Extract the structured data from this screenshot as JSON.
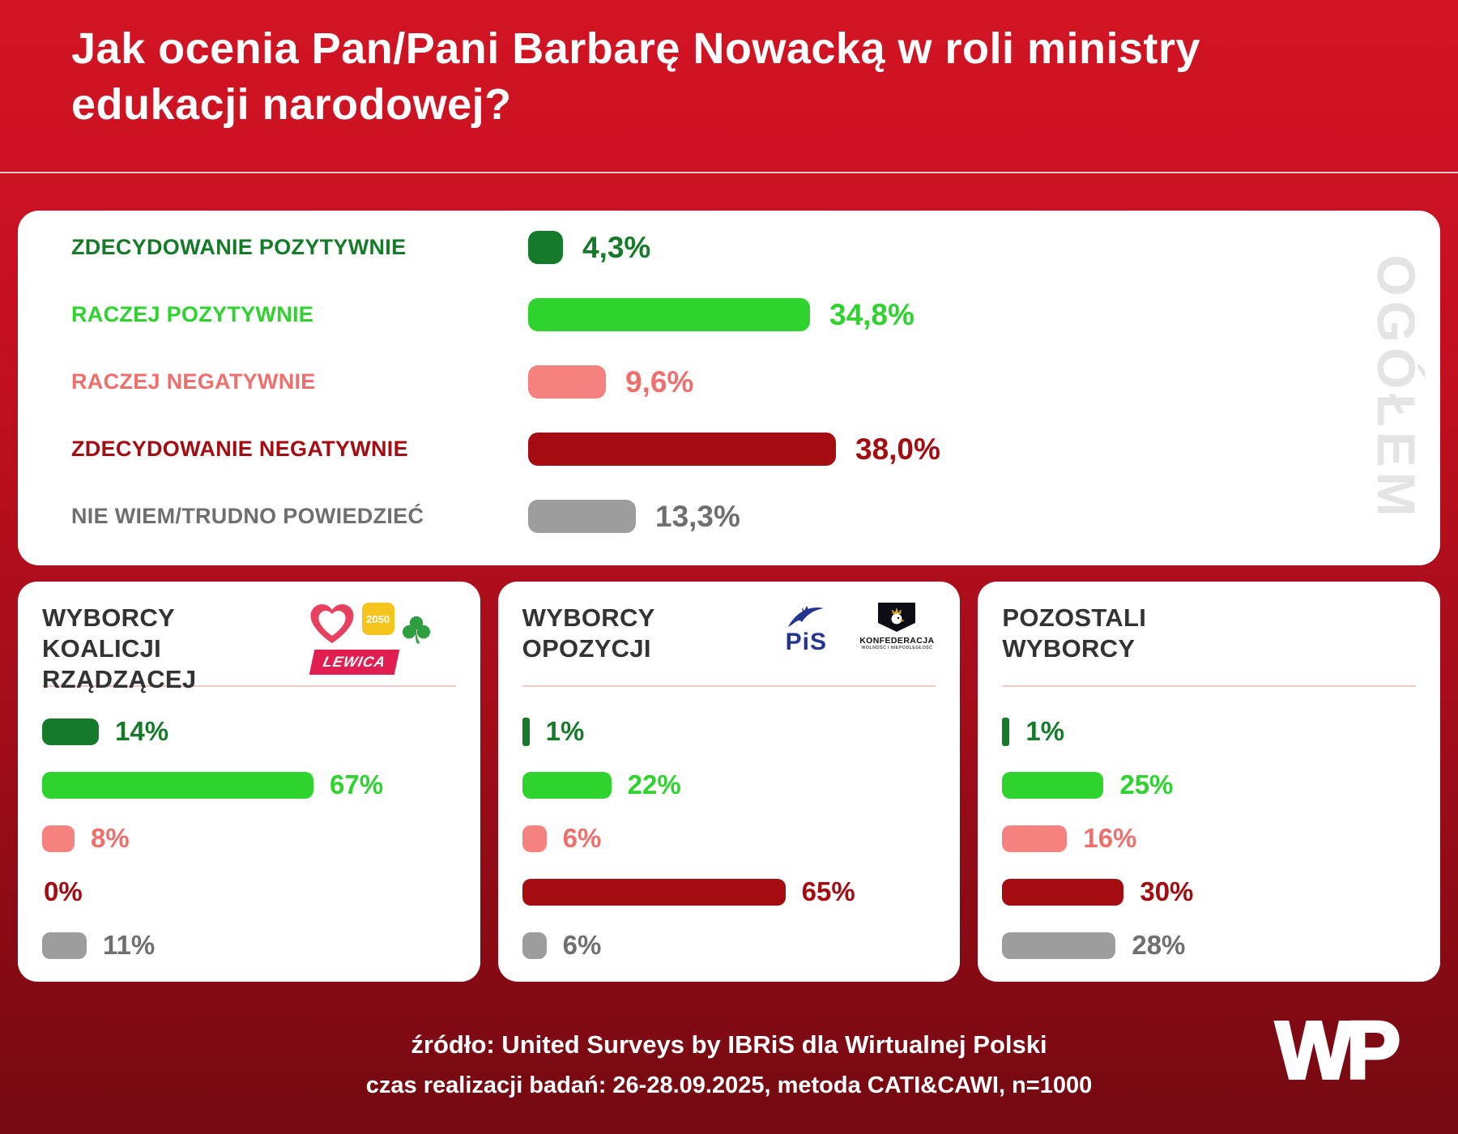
{
  "title_lines": [
    "Jak ocenia Pan/Pani Barbarę Nowacką w roli ministry",
    "edukacji narodowej?"
  ],
  "watermark": "OGÓŁEM",
  "series_colors": [
    "#157a29",
    "#2ed32e",
    "#f5827f",
    "#a50c12",
    "#9d9d9d"
  ],
  "label_colors": [
    "#157a29",
    "#2ed32e",
    "#ef6f6d",
    "#a50c12",
    "#6f6f6f"
  ],
  "chart_data": [
    {
      "type": "bar",
      "orientation": "horizontal",
      "title": "OGÓŁEM",
      "categories": [
        "ZDECYDOWANIE POZYTYWNIE",
        "RACZEJ POZYTYWNIE",
        "RACZEJ NEGATYWNIE",
        "ZDECYDOWANIE NEGATYWNIE",
        "NIE WIEM/TRUDNO POWIEDZIEĆ"
      ],
      "values": [
        4.3,
        34.8,
        9.6,
        38.0,
        13.3
      ],
      "value_labels": [
        "4,3%",
        "34,8%",
        "9,6%",
        "38,0%",
        "13,3%"
      ],
      "xlim": [
        0,
        40
      ],
      "grid": false,
      "legend_position": "none"
    },
    {
      "type": "bar",
      "orientation": "horizontal",
      "title": "WYBORCY KOALICJI RZĄDZĄCEJ",
      "categories": [
        "ZDECYDOWANIE POZYTYWNIE",
        "RACZEJ POZYTYWNIE",
        "RACZEJ NEGATYWNIE",
        "ZDECYDOWANIE NEGATYWNIE",
        "NIE WIEM/TRUDNO POWIEDZIEĆ"
      ],
      "values": [
        14,
        67,
        8,
        0,
        11
      ],
      "value_labels": [
        "14%",
        "67%",
        "8%",
        "0%",
        "11%"
      ],
      "xlim": [
        0,
        70
      ],
      "grid": false,
      "legend_position": "none"
    },
    {
      "type": "bar",
      "orientation": "horizontal",
      "title": "WYBORCY OPOZYCJI",
      "categories": [
        "ZDECYDOWANIE POZYTYWNIE",
        "RACZEJ POZYTYWNIE",
        "RACZEJ NEGATYWNIE",
        "ZDECYDOWANIE NEGATYWNIE",
        "NIE WIEM/TRUDNO POWIEDZIEĆ"
      ],
      "values": [
        1,
        22,
        6,
        65,
        6
      ],
      "value_labels": [
        "1%",
        "22%",
        "6%",
        "65%",
        "6%"
      ],
      "xlim": [
        0,
        70
      ],
      "grid": false,
      "legend_position": "none"
    },
    {
      "type": "bar",
      "orientation": "horizontal",
      "title": "POZOSTALI WYBORCY",
      "categories": [
        "ZDECYDOWANIE POZYTYWNIE",
        "RACZEJ POZYTYWNIE",
        "RACZEJ NEGATYWNIE",
        "ZDECYDOWANIE NEGATYWNIE",
        "NIE WIEM/TRUDNO POWIEDZIEĆ"
      ],
      "values": [
        1,
        25,
        16,
        30,
        28
      ],
      "value_labels": [
        "1%",
        "25%",
        "16%",
        "30%",
        "28%"
      ],
      "xlim": [
        0,
        70
      ],
      "grid": false,
      "legend_position": "none"
    }
  ],
  "group_cards": [
    {
      "title_line1": "WYBORCY",
      "title_line2": "KOALICJI RZĄDZĄCEJ"
    },
    {
      "title_line1": "WYBORCY",
      "title_line2": "OPOZYCJI"
    },
    {
      "title_line1": "POZOSTALI",
      "title_line2": "WYBORCY"
    }
  ],
  "logos": {
    "p2050_label": "2050",
    "lewica_label": "LEWICA",
    "pis_label": "PiS",
    "konfederacja_label": "KONFEDERACJA",
    "konfederacja_subtitle": "WOLNOŚĆ I NIEPODLEGŁOŚĆ"
  },
  "footer": {
    "source": "źródło: United Surveys by IBRiS dla Wirtualnej Polski",
    "details": "czas realizacji badań: 26-28.09.2025, metoda CATI&CAWI, n=1000",
    "wp_logo": "WP"
  }
}
